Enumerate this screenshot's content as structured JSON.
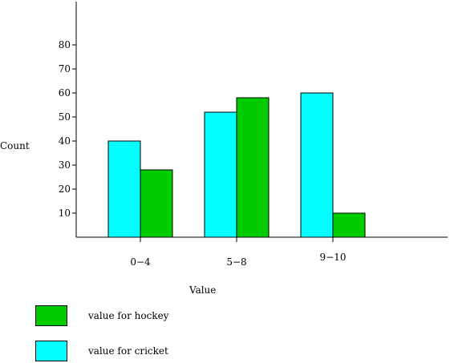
{
  "chart_data": {
    "type": "bar",
    "title": "",
    "xlabel": "Value",
    "ylabel": "Count",
    "categories": [
      "0−4",
      "5−8",
      "9−10"
    ],
    "series": [
      {
        "name": "value for cricket",
        "color": "#00ffff",
        "values": [
          40,
          52,
          60
        ]
      },
      {
        "name": "value for hockey",
        "color": "#00cc00",
        "values": [
          28,
          58,
          10
        ]
      }
    ],
    "yticks": [
      10,
      20,
      30,
      40,
      50,
      60,
      70,
      80
    ],
    "ylim": [
      0,
      100
    ],
    "grid": false,
    "legend_position": "bottom-left"
  },
  "legend": [
    {
      "name": "value for hockey",
      "color": "#00cc00"
    },
    {
      "name": "value for cricket",
      "color": "#00ffff"
    }
  ]
}
